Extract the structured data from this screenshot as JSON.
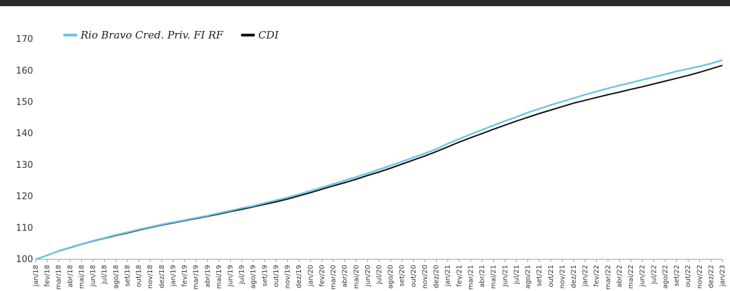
{
  "chart_data": {
    "type": "line",
    "title": "",
    "xlabel": "",
    "ylabel": "",
    "ylim": [
      100,
      172
    ],
    "yticks": [
      100,
      110,
      120,
      130,
      140,
      150,
      160,
      170
    ],
    "grid": false,
    "legend_position": "top-left",
    "categories": [
      "jan/18",
      "fev/18",
      "mar/18",
      "abr/18",
      "mai/18",
      "jun/18",
      "jul/18",
      "ago/18",
      "set/18",
      "out/18",
      "nov/18",
      "dez/18",
      "jan/19",
      "fev/19",
      "mar/19",
      "abr/19",
      "mai/19",
      "jun/19",
      "jul/19",
      "ago/19",
      "set/19",
      "out/19",
      "nov/19",
      "dez/19",
      "jan/20",
      "fev/20",
      "mar/20",
      "abr/20",
      "mai/20",
      "jun/20",
      "jul/20",
      "ago/20",
      "set/20",
      "out/20",
      "nov/20",
      "dez/20",
      "jan/21",
      "fev/21",
      "mar/21",
      "abr/21",
      "mai/21",
      "jun/21",
      "jul/21",
      "ago/21",
      "set/21",
      "out/21",
      "nov/21",
      "dez/21",
      "jan/22",
      "fev/22",
      "mar/22",
      "abr/22",
      "mai/22",
      "jun/22",
      "jul/22",
      "ago/22",
      "set/22",
      "out/22",
      "nov/22",
      "dez/22",
      "jan/23"
    ],
    "series": [
      {
        "name": "Rio Bravo Cred. Priv. FI RF",
        "color": "#6ec3e6",
        "values": [
          100.0,
          101.3,
          102.7,
          103.8,
          104.9,
          105.9,
          106.8,
          107.8,
          108.6,
          109.5,
          110.3,
          111.1,
          111.8,
          112.5,
          113.2,
          113.9,
          114.7,
          115.5,
          116.3,
          117.0,
          117.9,
          118.8,
          119.7,
          120.7,
          121.8,
          122.9,
          124.0,
          125.1,
          126.2,
          127.4,
          128.6,
          129.8,
          131.1,
          132.4,
          133.7,
          135.1,
          136.8,
          138.3,
          139.8,
          141.2,
          142.6,
          144.0,
          145.3,
          146.7,
          147.9,
          149.1,
          150.2,
          151.3,
          152.4,
          153.4,
          154.4,
          155.3,
          156.2,
          157.1,
          158.0,
          158.9,
          159.8,
          160.6,
          161.4,
          162.3,
          163.4
        ]
      },
      {
        "name": "CDI",
        "color": "#111111",
        "values": [
          100.0,
          101.3,
          102.6,
          103.7,
          104.8,
          105.8,
          106.7,
          107.6,
          108.4,
          109.3,
          110.1,
          110.9,
          111.6,
          112.3,
          113.0,
          113.7,
          114.4,
          115.2,
          115.9,
          116.7,
          117.5,
          118.3,
          119.2,
          120.2,
          121.2,
          122.3,
          123.4,
          124.4,
          125.5,
          126.7,
          127.8,
          129.0,
          130.3,
          131.6,
          132.9,
          134.3,
          135.8,
          137.3,
          138.7,
          140.0,
          141.4,
          142.7,
          144.0,
          145.2,
          146.4,
          147.5,
          148.6,
          149.7,
          150.6,
          151.5,
          152.4,
          153.2,
          154.1,
          154.9,
          155.8,
          156.7,
          157.6,
          158.5,
          159.5,
          160.6,
          161.7
        ]
      }
    ]
  }
}
